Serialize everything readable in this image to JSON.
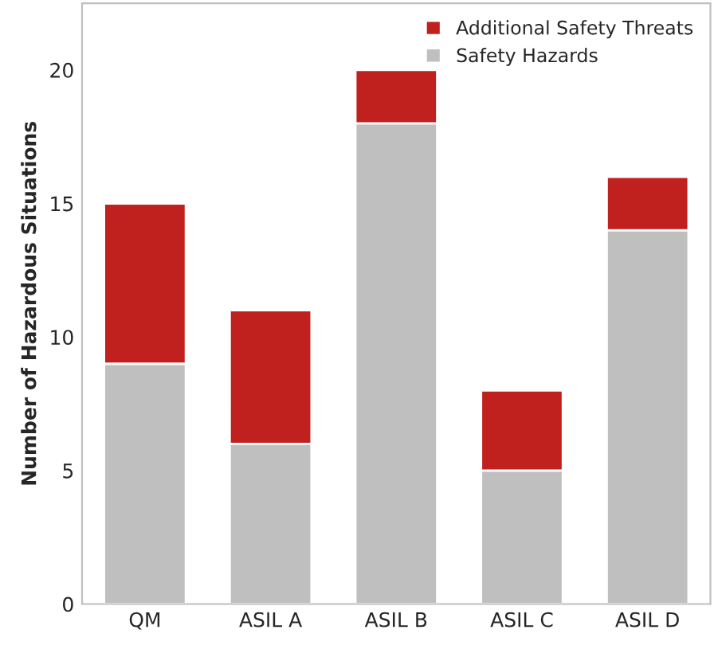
{
  "chart_data": {
    "type": "bar",
    "stacked": true,
    "ylabel": "Number of Hazardous Situations",
    "categories": [
      "QM",
      "ASIL A",
      "ASIL B",
      "ASIL C",
      "ASIL D"
    ],
    "series": [
      {
        "name": "Safety Hazards",
        "color": "#bfbfbf",
        "values": [
          9,
          6,
          18,
          5,
          14
        ]
      },
      {
        "name": "Additional Safety Threats",
        "color": "#c0201e",
        "values": [
          6,
          5,
          2,
          3,
          2
        ]
      }
    ],
    "ylim": [
      0,
      22.5
    ],
    "yticks": [
      0,
      5,
      10,
      15,
      20
    ],
    "grid": false,
    "legend": "top right"
  }
}
